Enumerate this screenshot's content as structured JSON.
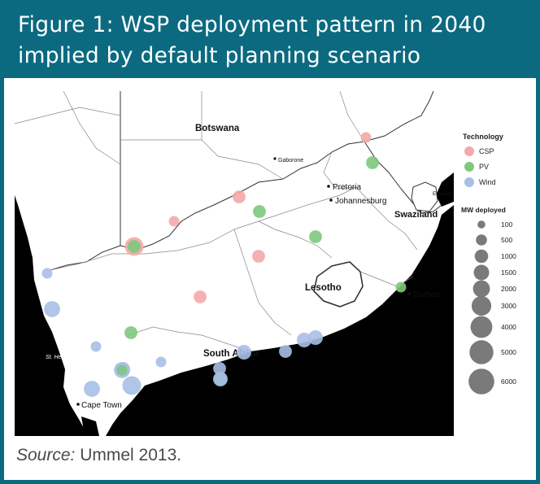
{
  "title": {
    "line1": "Figure 1: WSP deployment pattern in 2040",
    "line2": "implied by default planning scenario"
  },
  "map": {
    "labels": {
      "botswana": "Botswana",
      "gaborone": "Gaborone",
      "pretoria": "Pretoria",
      "johannesburg": "Johannesburg",
      "swaziland": "Swaziland",
      "eswatini": "Eswatini",
      "lesotho": "Lesotho",
      "durban": "Durban",
      "south_africa": "South Africa",
      "st_helena_bay": "St. Helena Bay",
      "cape_town": "Cape Town"
    },
    "sites": [
      {
        "tech": "CSP",
        "mw": 500,
        "place": "north-limpopo"
      },
      {
        "tech": "PV",
        "mw": 1000,
        "place": "mpumalanga"
      },
      {
        "tech": "CSP",
        "mw": 1000,
        "place": "northwest"
      },
      {
        "tech": "PV",
        "mw": 1000,
        "place": "northwest-south"
      },
      {
        "tech": "CSP",
        "mw": 500,
        "place": "northern-cape-north"
      },
      {
        "tech": "CSP",
        "mw": 3000,
        "place": "upington"
      },
      {
        "tech": "PV",
        "mw": 1000,
        "place": "upington"
      },
      {
        "tech": "PV",
        "mw": 1000,
        "place": "free-state"
      },
      {
        "tech": "CSP",
        "mw": 1000,
        "place": "free-state-south"
      },
      {
        "tech": "CSP",
        "mw": 1000,
        "place": "karoo"
      },
      {
        "tech": "PV",
        "mw": 500,
        "place": "kwazulu-natal"
      },
      {
        "tech": "Wind",
        "mw": 500,
        "place": "namaqualand-coast"
      },
      {
        "tech": "Wind",
        "mw": 2000,
        "place": "west-coast"
      },
      {
        "tech": "PV",
        "mw": 1000,
        "place": "western-karoo"
      },
      {
        "tech": "Wind",
        "mw": 500,
        "place": "st-helena-inland"
      },
      {
        "tech": "Wind",
        "mw": 1500,
        "place": "ceres"
      },
      {
        "tech": "Wind",
        "mw": 2000,
        "place": "worcester"
      },
      {
        "tech": "PV",
        "mw": 500,
        "place": "worcester"
      },
      {
        "tech": "Wind",
        "mw": 500,
        "place": "klein-karoo"
      },
      {
        "tech": "Wind",
        "mw": 3000,
        "place": "langebaan"
      },
      {
        "tech": "Wind",
        "mw": 2000,
        "place": "overberg"
      },
      {
        "tech": "Wind",
        "mw": 1500,
        "place": "south-africa-label"
      },
      {
        "tech": "Wind",
        "mw": 1000,
        "place": "george"
      },
      {
        "tech": "PV",
        "mw": 1000,
        "place": "oudtshoorn"
      },
      {
        "tech": "Wind",
        "mw": 1500,
        "place": "oudtshoorn"
      },
      {
        "tech": "Wind",
        "mw": 1500,
        "place": "port-elizabeth-west"
      },
      {
        "tech": "Wind",
        "mw": 1500,
        "place": "port-elizabeth"
      },
      {
        "tech": "Wind",
        "mw": 1000,
        "place": "east-london"
      }
    ]
  },
  "legend": {
    "technology_title": "Technology",
    "technologies": [
      {
        "name": "CSP",
        "color": "#f4a8a8"
      },
      {
        "name": "PV",
        "color": "#7ec87e"
      },
      {
        "name": "Wind",
        "color": "#a8bfe6"
      }
    ],
    "size_title": "MW deployed",
    "sizes": [
      "100",
      "500",
      "1000",
      "1500",
      "2000",
      "3000",
      "4000",
      "5000",
      "6000"
    ]
  },
  "source": {
    "label": "Source:",
    "text": " Ummel 2013."
  }
}
